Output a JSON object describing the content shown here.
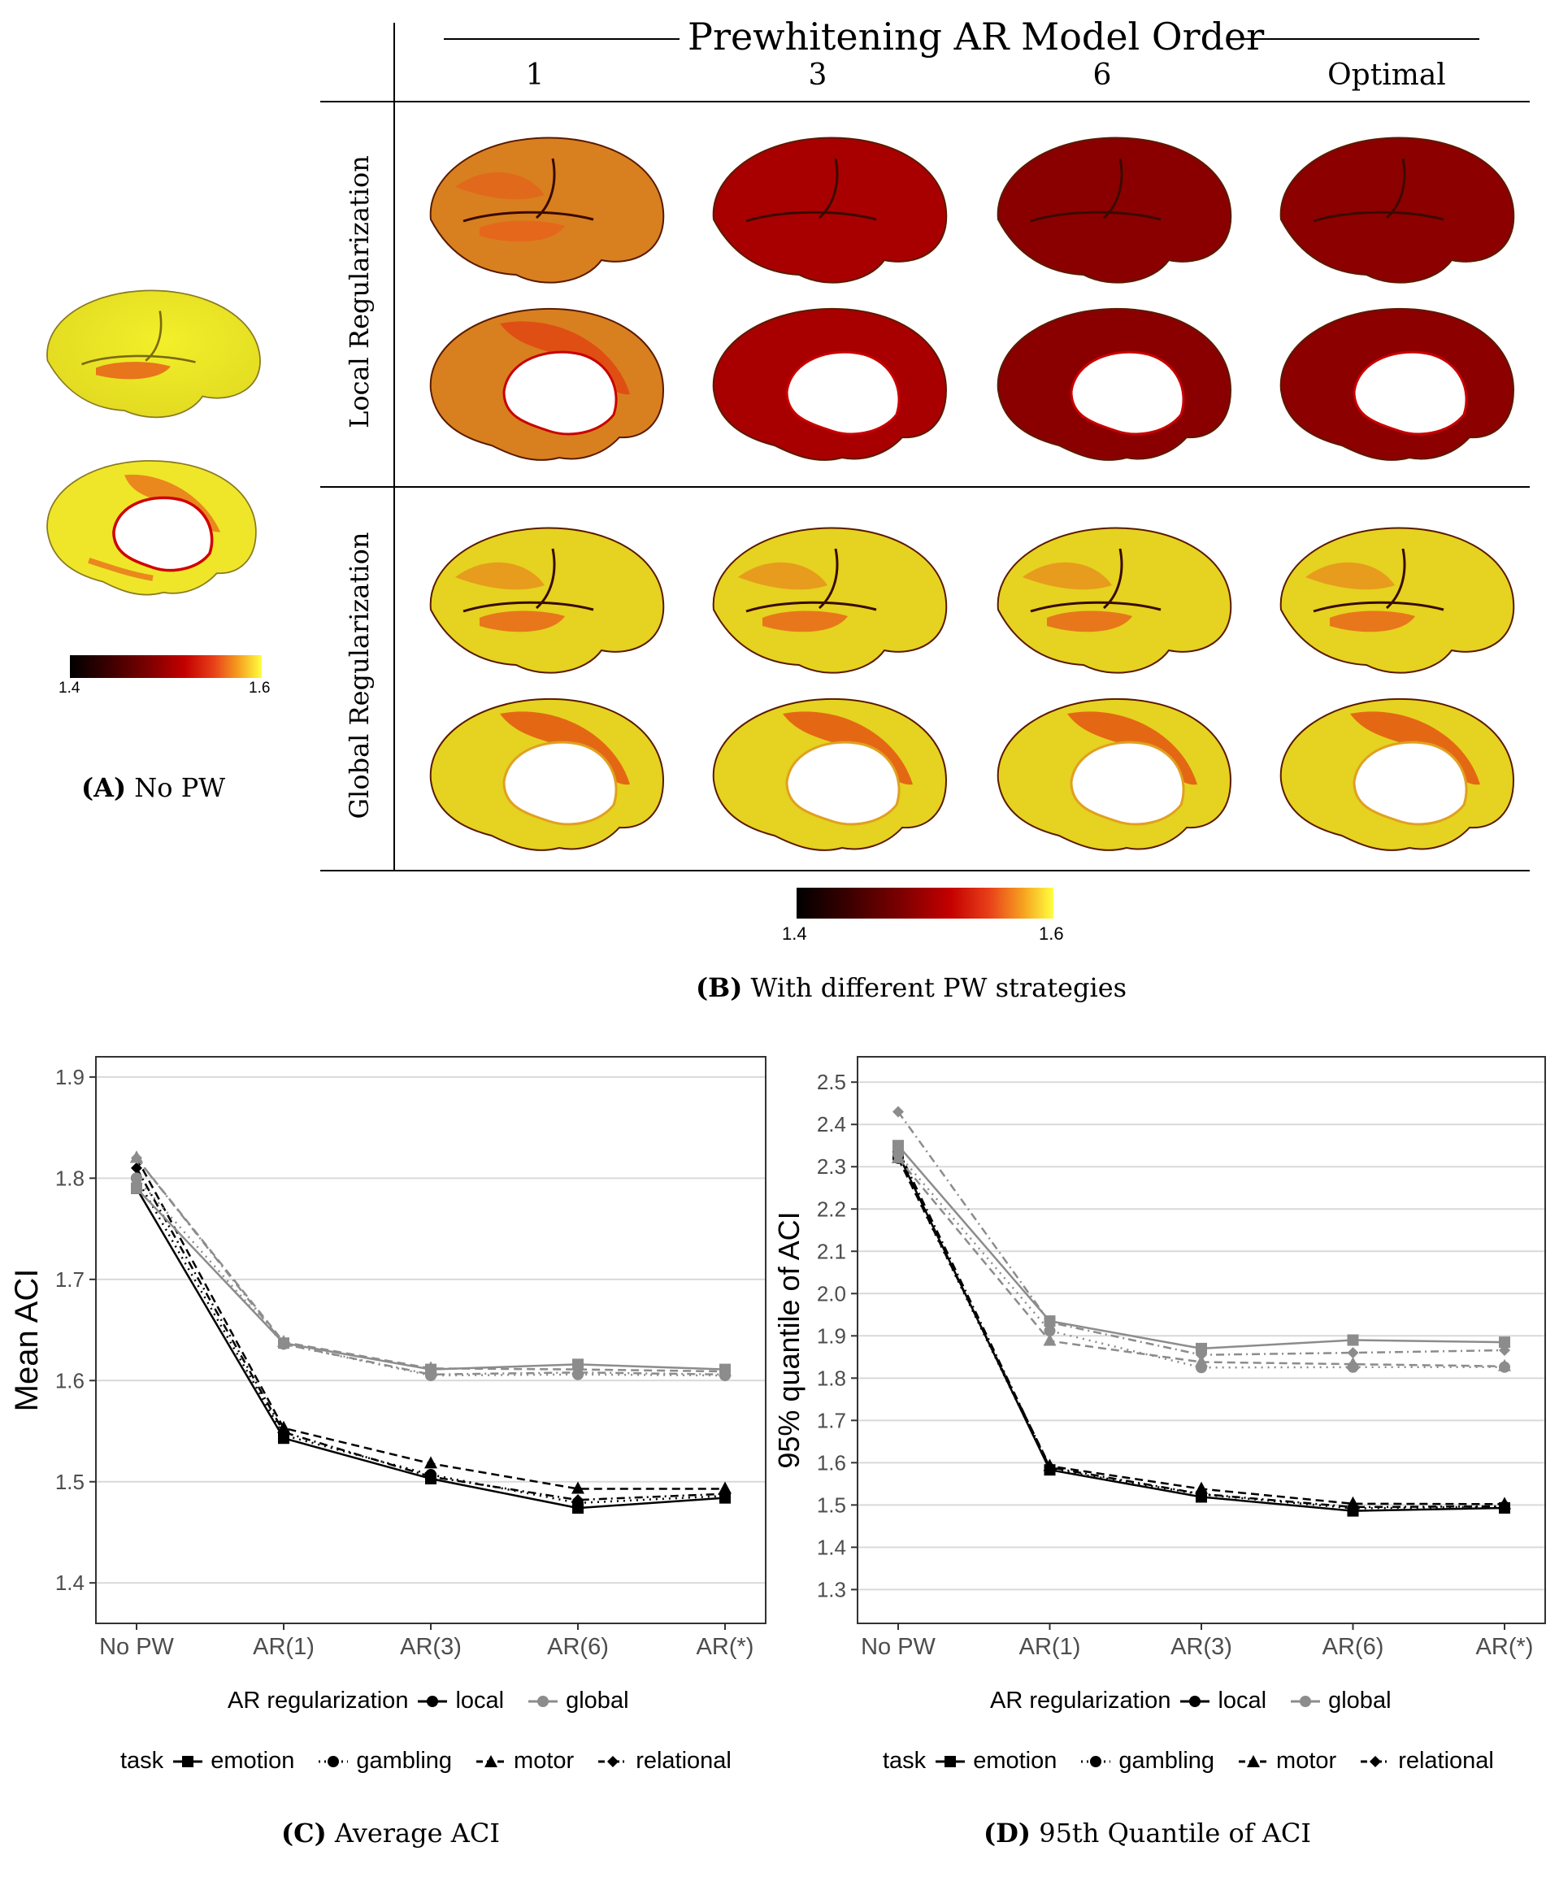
{
  "panel_a": {
    "caption_letter": "(A)",
    "caption_text": "No PW",
    "colorbar": {
      "min_label": "1.4",
      "max_label": "1.6"
    }
  },
  "panel_b": {
    "header": "Prewhitening AR Model Order",
    "columns": [
      "1",
      "3",
      "6",
      "Optimal"
    ],
    "rows": [
      "Local Regularization",
      "Global Regularization"
    ],
    "colorbar": {
      "min_label": "1.4",
      "max_label": "1.6"
    },
    "caption_letter": "(B)",
    "caption_text": "With different PW strategies"
  },
  "panel_c": {
    "caption_letter": "(C)",
    "caption_text": "Average ACI"
  },
  "panel_d": {
    "caption_letter": "(D)",
    "caption_text": "95th Quantile of ACI"
  },
  "legend": {
    "reg_title": "AR regularization",
    "reg_items": [
      "local",
      "global"
    ],
    "task_title": "task",
    "task_items": [
      "emotion",
      "gambling",
      "motor",
      "relational"
    ]
  },
  "colors": {
    "local": "#000000",
    "global": "#8c8c8c",
    "grid": "#d9d9d9"
  },
  "chart_data": [
    {
      "type": "line",
      "id": "C",
      "title": "",
      "xlabel": "",
      "ylabel": "Mean ACI",
      "categories": [
        "No PW",
        "AR(1)",
        "AR(3)",
        "AR(6)",
        "AR(*)"
      ],
      "ylim": [
        1.36,
        1.92
      ],
      "yticks": [
        1.4,
        1.5,
        1.6,
        1.7,
        1.8,
        1.9
      ],
      "series": [
        {
          "name": "local emotion",
          "reg": "local",
          "task": "emotion",
          "values": [
            1.79,
            1.543,
            1.503,
            1.474,
            1.484
          ]
        },
        {
          "name": "local gambling",
          "reg": "local",
          "task": "gambling",
          "values": [
            1.8,
            1.546,
            1.507,
            1.479,
            1.486
          ]
        },
        {
          "name": "local motor",
          "reg": "local",
          "task": "motor",
          "values": [
            1.82,
            1.553,
            1.518,
            1.493,
            1.493
          ]
        },
        {
          "name": "local relational",
          "reg": "local",
          "task": "relational",
          "values": [
            1.81,
            1.549,
            1.505,
            1.482,
            1.488
          ]
        },
        {
          "name": "global emotion",
          "reg": "global",
          "task": "emotion",
          "values": [
            1.79,
            1.637,
            1.611,
            1.616,
            1.611
          ]
        },
        {
          "name": "global gambling",
          "reg": "global",
          "task": "gambling",
          "values": [
            1.8,
            1.636,
            1.605,
            1.606,
            1.605
          ]
        },
        {
          "name": "global motor",
          "reg": "global",
          "task": "motor",
          "values": [
            1.82,
            1.638,
            1.612,
            1.611,
            1.609
          ]
        },
        {
          "name": "global relational",
          "reg": "global",
          "task": "relational",
          "values": [
            1.82,
            1.636,
            1.606,
            1.608,
            1.606
          ]
        }
      ]
    },
    {
      "type": "line",
      "id": "D",
      "title": "",
      "xlabel": "",
      "ylabel": "95% quantile of ACI",
      "categories": [
        "No PW",
        "AR(1)",
        "AR(3)",
        "AR(6)",
        "AR(*)"
      ],
      "ylim": [
        1.22,
        2.56
      ],
      "yticks": [
        1.3,
        1.4,
        1.5,
        1.6,
        1.7,
        1.8,
        1.9,
        2.0,
        2.1,
        2.2,
        2.3,
        2.4,
        2.5
      ],
      "series": [
        {
          "name": "local emotion",
          "reg": "local",
          "task": "emotion",
          "values": [
            2.33,
            1.583,
            1.519,
            1.486,
            1.493
          ]
        },
        {
          "name": "local gambling",
          "reg": "local",
          "task": "gambling",
          "values": [
            2.32,
            1.585,
            1.525,
            1.492,
            1.496
          ]
        },
        {
          "name": "local motor",
          "reg": "local",
          "task": "motor",
          "values": [
            2.32,
            1.592,
            1.538,
            1.503,
            1.502
          ]
        },
        {
          "name": "local relational",
          "reg": "local",
          "task": "relational",
          "values": [
            2.34,
            1.589,
            1.526,
            1.495,
            1.497
          ]
        },
        {
          "name": "global emotion",
          "reg": "global",
          "task": "emotion",
          "values": [
            2.35,
            1.935,
            1.87,
            1.89,
            1.885
          ]
        },
        {
          "name": "global gambling",
          "reg": "global",
          "task": "gambling",
          "values": [
            2.33,
            1.912,
            1.825,
            1.826,
            1.826
          ]
        },
        {
          "name": "global motor",
          "reg": "global",
          "task": "motor",
          "values": [
            2.32,
            1.888,
            1.838,
            1.833,
            1.828
          ]
        },
        {
          "name": "global relational",
          "reg": "global",
          "task": "relational",
          "values": [
            2.43,
            1.932,
            1.855,
            1.86,
            1.866
          ]
        }
      ]
    }
  ]
}
